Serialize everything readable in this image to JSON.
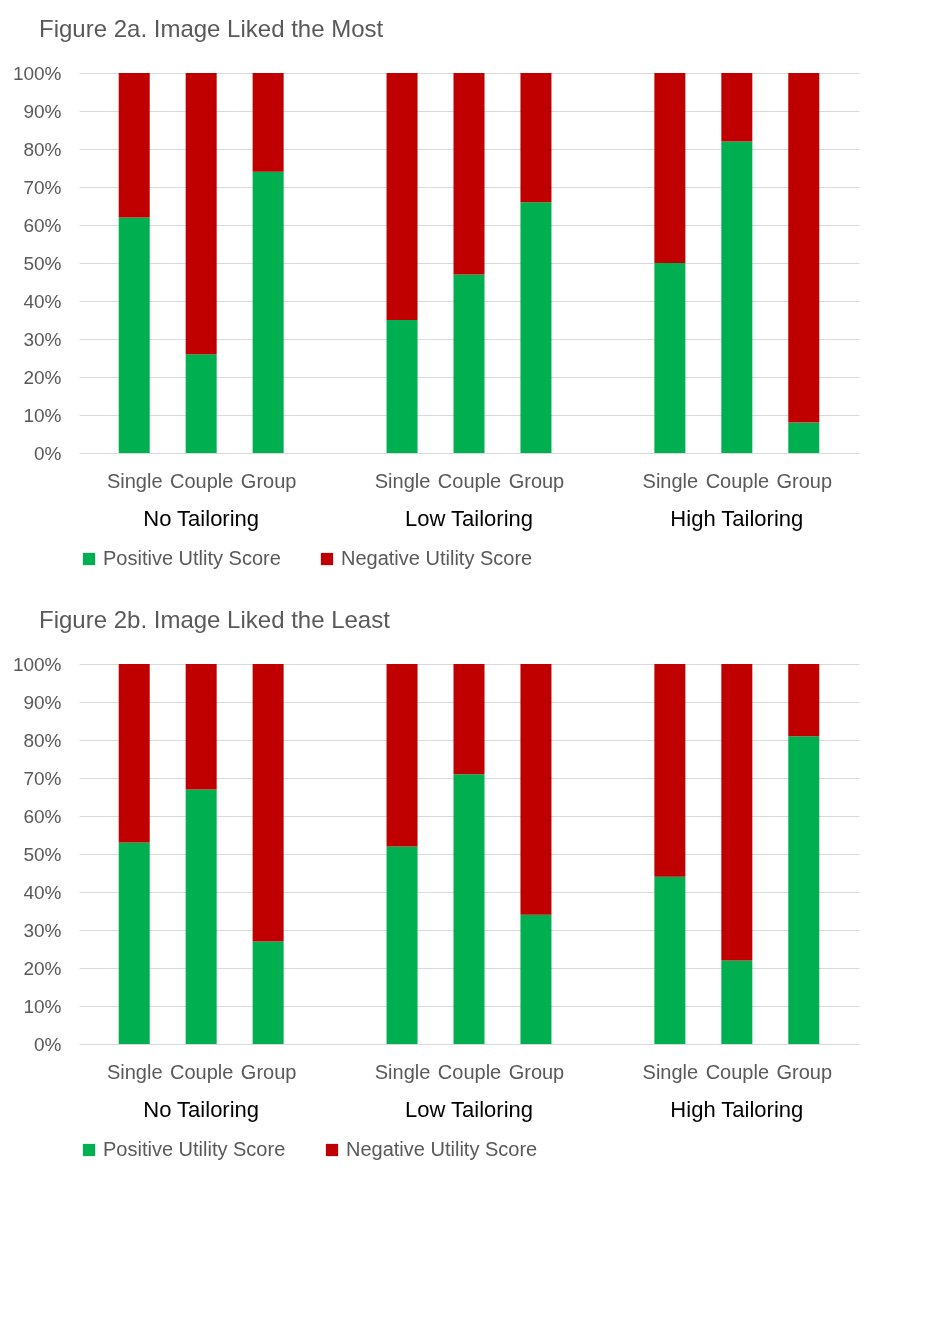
{
  "chart_data": [
    {
      "type": "bar",
      "title": "Figure 2a. Image Liked the Most",
      "categories": [
        "Single",
        "Couple",
        "Group",
        "Single",
        "Couple",
        "Group",
        "Single",
        "Couple",
        "Group"
      ],
      "annotations": [
        "No Tailoring",
        "Low Tailoring",
        "High Tailoring"
      ],
      "stacked": true,
      "series": [
        {
          "name": "Positive Utlity Score",
          "color": "#00b050",
          "values": [
            62,
            26,
            74,
            35,
            47,
            66,
            50,
            82,
            8
          ]
        },
        {
          "name": "Negative Utility Score",
          "color": "#c00000",
          "values": [
            38,
            74,
            26,
            65,
            53,
            34,
            50,
            18,
            92
          ]
        }
      ],
      "ylim": [
        0,
        100
      ],
      "yticks": [
        {
          "value": 0,
          "label": "0%"
        },
        {
          "value": 10,
          "label": "10%"
        },
        {
          "value": 20,
          "label": "20%"
        },
        {
          "value": 30,
          "label": "30%"
        },
        {
          "value": 40,
          "label": "40%"
        },
        {
          "value": 50,
          "label": "50%"
        },
        {
          "value": 60,
          "label": "60%"
        },
        {
          "value": 70,
          "label": "70%"
        },
        {
          "value": 80,
          "label": "80%"
        },
        {
          "value": 90,
          "label": "90%"
        },
        {
          "value": 100,
          "label": "100%"
        }
      ],
      "grid": "y",
      "legend": "bottom"
    },
    {
      "type": "bar",
      "title": "Figure 2b. Image Liked the Least",
      "categories": [
        "Single",
        "Couple",
        "Group",
        "Single",
        "Couple",
        "Group",
        "Single",
        "Couple",
        "Group"
      ],
      "annotations": [
        "No Tailoring",
        "Low Tailoring",
        "High Tailoring"
      ],
      "stacked": true,
      "series": [
        {
          "name": "Positive Utility Score",
          "color": "#00b050",
          "values": [
            53,
            67,
            27,
            52,
            71,
            34,
            44,
            22,
            81
          ]
        },
        {
          "name": "Negative Utility Score",
          "color": "#c00000",
          "values": [
            47,
            33,
            73,
            48,
            29,
            66,
            56,
            78,
            19
          ]
        }
      ],
      "ylim": [
        0,
        100
      ],
      "yticks": [
        {
          "value": 0,
          "label": "0%"
        },
        {
          "value": 10,
          "label": "10%"
        },
        {
          "value": 20,
          "label": "20%"
        },
        {
          "value": 30,
          "label": "30%"
        },
        {
          "value": 40,
          "label": "40%"
        },
        {
          "value": 50,
          "label": "50%"
        },
        {
          "value": 60,
          "label": "60%"
        },
        {
          "value": 70,
          "label": "70%"
        },
        {
          "value": 80,
          "label": "80%"
        },
        {
          "value": 90,
          "label": "90%"
        },
        {
          "value": 100,
          "label": "100%"
        }
      ],
      "grid": "y",
      "legend": "bottom"
    }
  ]
}
